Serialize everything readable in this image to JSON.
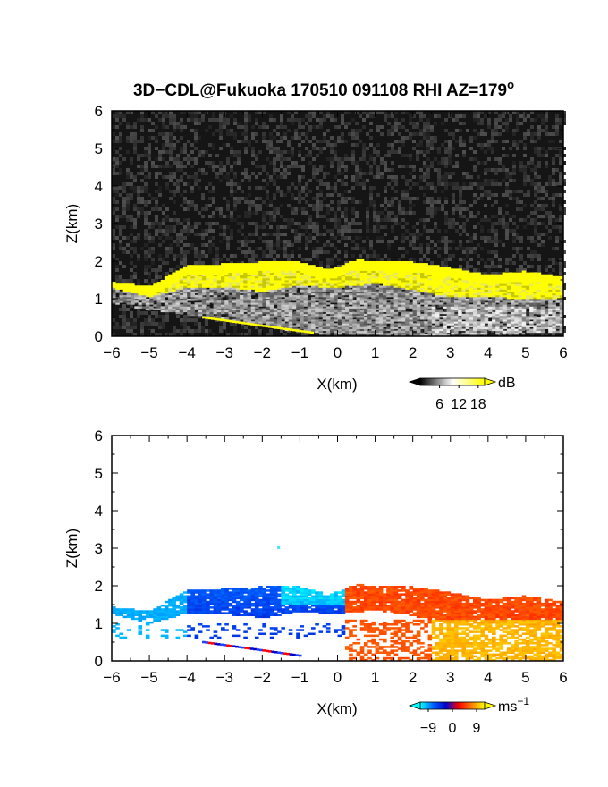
{
  "figure": {
    "title": "3D−CDL@Fukuoka 170510 091108 RHI AZ=179",
    "title_superscript": "o"
  },
  "chart_data": [
    {
      "type": "heatmap",
      "name": "reflectivity",
      "xlabel": "X(km)",
      "ylabel": "Z(km)",
      "xlim": [
        -6,
        6
      ],
      "ylim": [
        0,
        6
      ],
      "xticks": [
        "−6",
        "−5",
        "−4",
        "−3",
        "−2",
        "−1",
        "0",
        "1",
        "2",
        "3",
        "4",
        "5",
        "6"
      ],
      "yticks": [
        "0",
        "1",
        "2",
        "3",
        "4",
        "5",
        "6"
      ],
      "colorbar": {
        "unit": "dB",
        "tick_values": [
          6,
          12,
          18
        ],
        "tick_labels": [
          "6",
          "12",
          "18"
        ],
        "range": [
          0,
          20
        ],
        "colors": [
          "#000000",
          "#ffffff",
          "#ffff00"
        ]
      },
      "features": {
        "cloud_top_km": [
          [
            -6,
            1.4
          ],
          [
            -5,
            1.3
          ],
          [
            -4,
            1.85
          ],
          [
            -3,
            1.9
          ],
          [
            -2,
            1.95
          ],
          [
            -1,
            1.95
          ],
          [
            -0.2,
            1.75
          ],
          [
            0.5,
            2.0
          ],
          [
            2,
            1.95
          ],
          [
            3,
            1.8
          ],
          [
            4,
            1.6
          ],
          [
            5,
            1.7
          ],
          [
            6,
            1.55
          ]
        ],
        "cloud_base_km": [
          [
            -6,
            1.3
          ],
          [
            -5,
            1.05
          ],
          [
            -4,
            1.3
          ],
          [
            -3,
            1.3
          ],
          [
            -2,
            1.2
          ],
          [
            -1,
            1.35
          ],
          [
            0,
            1.3
          ],
          [
            1,
            1.4
          ],
          [
            2,
            1.25
          ],
          [
            3,
            1.05
          ],
          [
            4,
            1.05
          ],
          [
            5,
            1.0
          ],
          [
            6,
            1.0
          ]
        ],
        "echo_floor_km": [
          [
            -6,
            0.9
          ],
          [
            -5,
            0.7
          ],
          [
            -3,
            0.45
          ],
          [
            -1,
            0.1
          ],
          [
            0,
            0.05
          ],
          [
            2,
            0.0
          ],
          [
            4,
            0.05
          ],
          [
            6,
            0.1
          ]
        ]
      }
    },
    {
      "type": "heatmap",
      "name": "doppler_velocity",
      "xlabel": "X(km)",
      "ylabel": "Z(km)",
      "xlim": [
        -6,
        6
      ],
      "ylim": [
        0,
        6
      ],
      "xticks": [
        "−6",
        "−5",
        "−4",
        "−3",
        "−2",
        "−1",
        "0",
        "1",
        "2",
        "3",
        "4",
        "5",
        "6"
      ],
      "yticks": [
        "0",
        "1",
        "2",
        "3",
        "4",
        "5",
        "6"
      ],
      "colorbar": {
        "unit": "ms",
        "unit_superscript": "−1",
        "tick_values": [
          -9,
          0,
          9
        ],
        "tick_labels": [
          "−9",
          "0",
          "9"
        ],
        "range": [
          -12,
          12
        ],
        "colors": [
          "#00ffff",
          "#0060ff",
          "#0000cc",
          "#ff0000",
          "#ff8000",
          "#ffff00"
        ]
      },
      "features": {
        "sign_change_x_km": 0.2,
        "isolated_point": [
          -1.6,
          3.05
        ]
      }
    }
  ]
}
